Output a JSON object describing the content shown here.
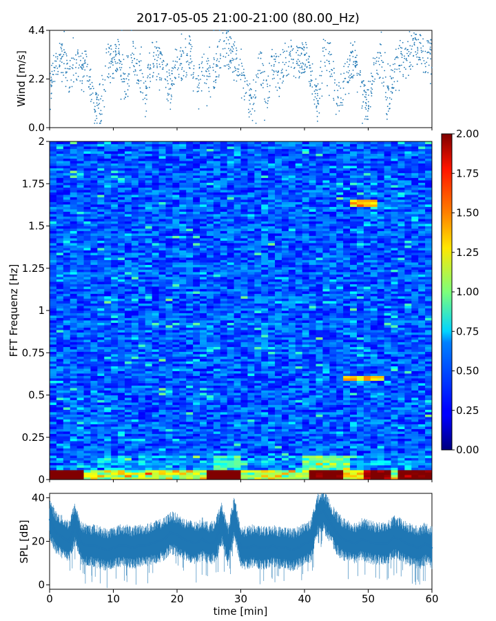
{
  "title": "2017-05-05 21:00-21:00 (80.00_Hz)",
  "chart_data": [
    {
      "type": "scatter",
      "panel": "wind",
      "ylabel": "Wind [m/s]",
      "xlabel": "",
      "xlim": [
        0,
        60
      ],
      "ylim": [
        0,
        4.4
      ],
      "yticks": [
        "0.0",
        "2.2",
        "4.4"
      ],
      "color": "#1f77b4",
      "series": [
        {
          "x": [
            0,
            1,
            2,
            3,
            4,
            5,
            6,
            7,
            8,
            9,
            10,
            11,
            12,
            13,
            14,
            15,
            16,
            17,
            18,
            19,
            20,
            21,
            22,
            23,
            24,
            25,
            26,
            27,
            28,
            29,
            30,
            31,
            32,
            33,
            34,
            35,
            36,
            37,
            38,
            39,
            40,
            41,
            42,
            43,
            44,
            45,
            46,
            47,
            48,
            49,
            50,
            51,
            52,
            53,
            54,
            55,
            56,
            57,
            58,
            59,
            60
          ],
          "y": [
            1.6,
            3.0,
            3.1,
            2.2,
            2.8,
            2.7,
            2.7,
            0.9,
            0.8,
            2.9,
            3.0,
            3.4,
            1.6,
            3.4,
            2.6,
            1.2,
            3.1,
            3.0,
            2.3,
            1.8,
            3.2,
            2.8,
            3.4,
            2.2,
            2.5,
            2.4,
            2.6,
            3.5,
            3.6,
            2.9,
            2.8,
            1.3,
            1.0,
            2.9,
            1.4,
            2.9,
            2.3,
            3.1,
            3.2,
            2.9,
            3.3,
            2.6,
            1.1,
            3.3,
            3.2,
            1.2,
            1.8,
            2.9,
            3.2,
            1.5,
            0.9,
            2.9,
            3.0,
            1.1,
            2.5,
            3.2,
            3.0,
            3.5,
            3.5,
            3.2,
            3.4
          ]
        }
      ]
    },
    {
      "type": "heatmap",
      "panel": "spectrogram",
      "ylabel": "FFT Frequenz [Hz]",
      "xlabel": "",
      "xlim": [
        0,
        60
      ],
      "ylim": [
        0,
        2
      ],
      "yticks": [
        "0",
        "0.25",
        "0.5",
        "0.75",
        "1",
        "1.25",
        "1.5",
        "1.75",
        "2"
      ],
      "colorbar": {
        "min": 0,
        "max": 2,
        "ticks": [
          "0.00",
          "0.25",
          "0.50",
          "0.75",
          "1.00",
          "1.25",
          "1.50",
          "1.75",
          "2.00"
        ],
        "colormap": "jet"
      }
    },
    {
      "type": "line",
      "panel": "spl",
      "ylabel": "SPL [dB]",
      "xlabel": "time [min]",
      "xlim": [
        0,
        60
      ],
      "ylim": [
        -2,
        42
      ],
      "yticks": [
        "0",
        "20",
        "40"
      ],
      "xticks": [
        "0",
        "10",
        "20",
        "30",
        "40",
        "50",
        "60"
      ],
      "color": "#1f77b4",
      "series": [
        {
          "x": [
            0,
            1,
            2,
            3,
            4,
            5,
            6,
            7,
            8,
            9,
            10,
            11,
            12,
            13,
            14,
            15,
            16,
            17,
            18,
            19,
            20,
            21,
            22,
            23,
            24,
            25,
            26,
            27,
            28,
            29,
            30,
            31,
            32,
            33,
            34,
            35,
            36,
            37,
            38,
            39,
            40,
            41,
            42,
            43,
            44,
            45,
            46,
            47,
            48,
            49,
            50,
            51,
            52,
            53,
            54,
            55,
            56,
            57,
            58,
            59,
            60
          ],
          "y": [
            30,
            24,
            22,
            20,
            28,
            19,
            18,
            18,
            17,
            16,
            17,
            18,
            18,
            17,
            18,
            18,
            19,
            20,
            21,
            24,
            23,
            21,
            20,
            19,
            21,
            19,
            20,
            28,
            18,
            31,
            17,
            17,
            18,
            17,
            17,
            18,
            17,
            17,
            16,
            17,
            19,
            20,
            32,
            34,
            29,
            24,
            21,
            20,
            19,
            21,
            20,
            19,
            19,
            19,
            22,
            21,
            19,
            18,
            17,
            19,
            17
          ]
        }
      ]
    }
  ]
}
